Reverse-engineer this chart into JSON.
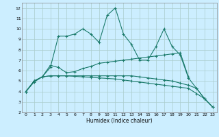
{
  "title": "",
  "xlabel": "Humidex (Indice chaleur)",
  "bg_color": "#cceeff",
  "grid_color": "#aacccc",
  "line_color": "#1a7a6a",
  "xlim": [
    -0.5,
    23.5
  ],
  "ylim": [
    2,
    12.5
  ],
  "xticks": [
    0,
    1,
    2,
    3,
    4,
    5,
    6,
    7,
    8,
    9,
    10,
    11,
    12,
    13,
    14,
    15,
    16,
    17,
    18,
    19,
    20,
    21,
    22,
    23
  ],
  "yticks": [
    2,
    3,
    4,
    5,
    6,
    7,
    8,
    9,
    10,
    11,
    12
  ],
  "series": [
    [
      4.0,
      4.9,
      5.4,
      6.3,
      9.3,
      9.3,
      9.5,
      10.0,
      9.5,
      8.7,
      11.3,
      12.0,
      9.5,
      8.5,
      7.0,
      7.0,
      8.3,
      10.0,
      8.3,
      7.5,
      5.3,
      4.3,
      3.3,
      2.5
    ],
    [
      4.0,
      5.0,
      5.4,
      6.5,
      6.3,
      5.8,
      5.9,
      6.2,
      6.4,
      6.7,
      6.8,
      6.9,
      7.0,
      7.1,
      7.2,
      7.3,
      7.4,
      7.5,
      7.6,
      7.7,
      5.4,
      null,
      null,
      null
    ],
    [
      4.0,
      5.0,
      5.4,
      5.5,
      5.5,
      5.5,
      5.5,
      5.5,
      5.5,
      5.5,
      5.5,
      5.5,
      5.5,
      5.5,
      5.4,
      5.3,
      5.2,
      5.1,
      5.0,
      4.8,
      4.6,
      4.3,
      3.3,
      2.5
    ],
    [
      4.0,
      5.0,
      5.4,
      5.5,
      5.5,
      5.5,
      5.45,
      5.4,
      5.35,
      5.3,
      5.25,
      5.2,
      5.1,
      5.0,
      4.9,
      4.8,
      4.7,
      4.6,
      4.5,
      4.4,
      4.3,
      3.8,
      3.3,
      2.5
    ]
  ],
  "xlabel_fontsize": 5.5,
  "tick_fontsize": 4.5,
  "linewidth": 0.8,
  "markersize": 3.0
}
